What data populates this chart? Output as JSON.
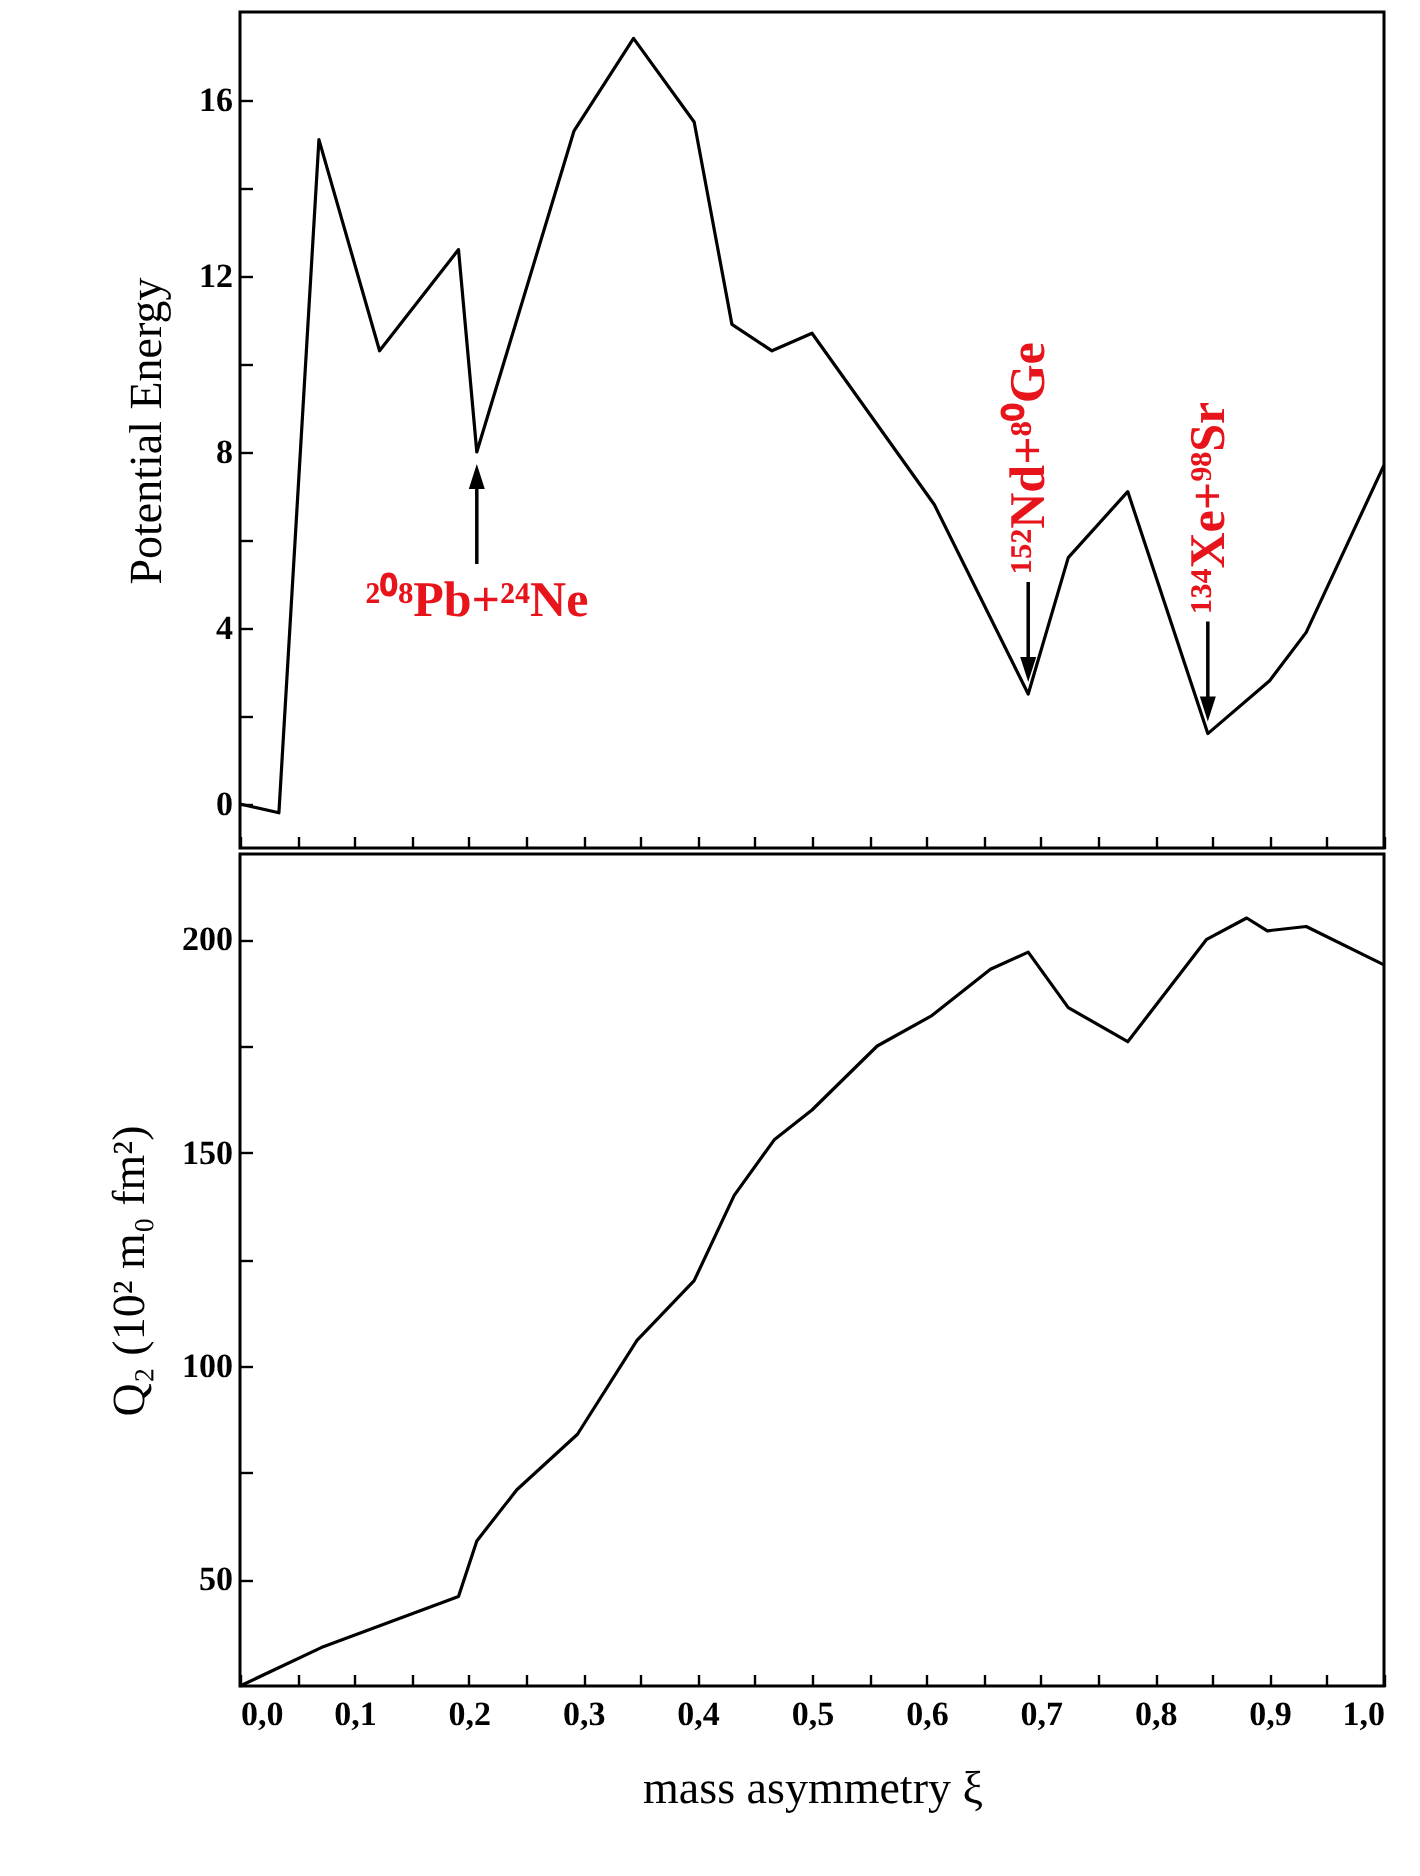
{
  "chart_data": [
    {
      "type": "line",
      "ylabel": "Potential Energy",
      "xlim": [
        0,
        1
      ],
      "ylim": [
        -1,
        18
      ],
      "xticks": [
        {
          "value": 0,
          "label": null
        },
        {
          "value": 0.05,
          "label": null
        },
        {
          "value": 0.1,
          "label": null
        },
        {
          "value": 0.15,
          "label": null
        },
        {
          "value": 0.2,
          "label": null
        },
        {
          "value": 0.25,
          "label": null
        },
        {
          "value": 0.3,
          "label": null
        },
        {
          "value": 0.35,
          "label": null
        },
        {
          "value": 0.4,
          "label": null
        },
        {
          "value": 0.45,
          "label": null
        },
        {
          "value": 0.5,
          "label": null
        },
        {
          "value": 0.55,
          "label": null
        },
        {
          "value": 0.6,
          "label": null
        },
        {
          "value": 0.65,
          "label": null
        },
        {
          "value": 0.7,
          "label": null
        },
        {
          "value": 0.75,
          "label": null
        },
        {
          "value": 0.8,
          "label": null
        },
        {
          "value": 0.85,
          "label": null
        },
        {
          "value": 0.9,
          "label": null
        },
        {
          "value": 0.95,
          "label": null
        },
        {
          "value": 1,
          "label": null
        }
      ],
      "yticks": [
        0,
        {
          "value": 2,
          "label": null
        },
        4,
        {
          "value": 6,
          "label": null
        },
        8,
        {
          "value": 10,
          "label": null
        },
        12,
        {
          "value": 14,
          "label": null
        },
        16
      ],
      "tick_labels": "y",
      "grid": false,
      "marker": "none",
      "line_style": "solid",
      "series": [
        {
          "color": "#000000",
          "x": [
            0,
            0.034,
            0.069,
            0.122,
            0.191,
            0.207,
            0.292,
            0.344,
            0.397,
            0.43,
            0.465,
            0.5,
            0.607,
            0.689,
            0.724,
            0.776,
            0.846,
            0.9,
            0.932,
            1.0
          ],
          "values": [
            0,
            -0.2,
            15.1,
            10.3,
            12.6,
            8.0,
            15.3,
            17.4,
            15.5,
            10.9,
            10.3,
            10.7,
            6.8,
            2.5,
            5.6,
            7.1,
            1.6,
            2.8,
            3.9,
            7.7
          ]
        }
      ],
      "annotations": [
        {
          "text": "²⁰⁸Pb+²⁴Ne",
          "x": 0.207,
          "y": 8.0
        },
        {
          "text": "¹⁵²Nd+⁸⁰Ge",
          "x": 0.689,
          "y": 2.5
        },
        {
          "text": "¹³⁴Xe+⁹⁸Sr",
          "x": 0.846,
          "y": 1.6
        }
      ]
    },
    {
      "type": "line",
      "xlabel": "mass asymmetry  ξ",
      "ylabel": "Q₂  (10² m₀ fm²)",
      "xlim": [
        0,
        1
      ],
      "ylim": [
        25,
        220
      ],
      "xticks": [
        {
          "value": 0,
          "label": "0,0"
        },
        {
          "value": 0.05,
          "label": null
        },
        {
          "value": 0.1,
          "label": "0,1"
        },
        {
          "value": 0.15,
          "label": null
        },
        {
          "value": 0.2,
          "label": "0,2"
        },
        {
          "value": 0.25,
          "label": null
        },
        {
          "value": 0.3,
          "label": "0,3"
        },
        {
          "value": 0.35,
          "label": null
        },
        {
          "value": 0.4,
          "label": "0,4"
        },
        {
          "value": 0.45,
          "label": null
        },
        {
          "value": 0.5,
          "label": "0,5"
        },
        {
          "value": 0.55,
          "label": null
        },
        {
          "value": 0.6,
          "label": "0,6"
        },
        {
          "value": 0.65,
          "label": null
        },
        {
          "value": 0.7,
          "label": "0,7"
        },
        {
          "value": 0.75,
          "label": null
        },
        {
          "value": 0.8,
          "label": "0,8"
        },
        {
          "value": 0.85,
          "label": null
        },
        {
          "value": 0.9,
          "label": "0,9"
        },
        {
          "value": 0.95,
          "label": null
        },
        {
          "value": 1,
          "label": "1,0"
        }
      ],
      "yticks": [
        50,
        {
          "value": 75,
          "label": null
        },
        100,
        {
          "value": 125,
          "label": null
        },
        150,
        {
          "value": 175,
          "label": null
        },
        200
      ],
      "grid": false,
      "marker": "none",
      "line_style": "solid",
      "series": [
        {
          "color": "#000000",
          "x": [
            0,
            0.071,
            0.191,
            0.207,
            0.242,
            0.295,
            0.347,
            0.397,
            0.432,
            0.467,
            0.5,
            0.557,
            0.604,
            0.656,
            0.689,
            0.724,
            0.776,
            0.845,
            0.88,
            0.898,
            0.932,
            1.0
          ],
          "values": [
            25,
            34,
            46,
            59,
            71,
            84,
            106,
            120,
            140,
            153,
            160,
            175,
            182,
            193,
            197,
            184,
            176,
            200,
            205,
            202,
            203,
            194
          ]
        }
      ]
    }
  ]
}
